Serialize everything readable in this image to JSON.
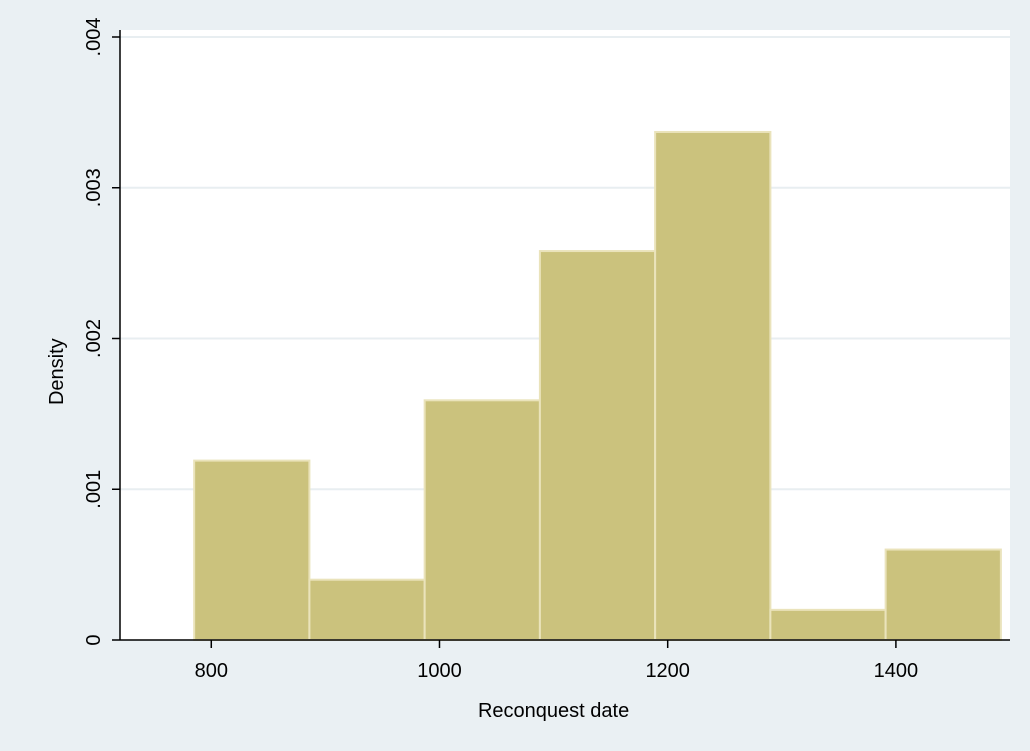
{
  "chart_data": {
    "type": "bar",
    "subtype": "histogram",
    "bins": [
      {
        "start": 785,
        "end": 886,
        "density": 0.00119
      },
      {
        "start": 886,
        "end": 987,
        "density": 0.0004
      },
      {
        "start": 987,
        "end": 1088,
        "density": 0.00159
      },
      {
        "start": 1088,
        "end": 1189,
        "density": 0.00258
      },
      {
        "start": 1189,
        "end": 1290,
        "density": 0.00337
      },
      {
        "start": 1290,
        "end": 1391,
        "density": 0.0002
      },
      {
        "start": 1391,
        "end": 1492,
        "density": 0.0006
      }
    ],
    "xlabel": "Reconquest date",
    "ylabel": "Density",
    "xlim": [
      720,
      1500
    ],
    "ylim": [
      0,
      0.004
    ],
    "xticks": [
      800,
      1000,
      1200,
      1400
    ],
    "xtick_labels": [
      "800",
      "1000",
      "1200",
      "1400"
    ],
    "yticks": [
      0,
      0.001,
      0.002,
      0.003,
      0.004
    ],
    "ytick_labels": [
      "0",
      ".001",
      ".002",
      ".003",
      ".004"
    ],
    "grid": true,
    "grid_axis": "y",
    "legend": "none",
    "colors": {
      "bar_fill": "#cbc27d",
      "bar_edge": "#eae3bb",
      "plot_background": "#ffffff",
      "outer_background": "#eaf0f3",
      "grid": "#e8eef1",
      "axis": "#000000"
    }
  }
}
